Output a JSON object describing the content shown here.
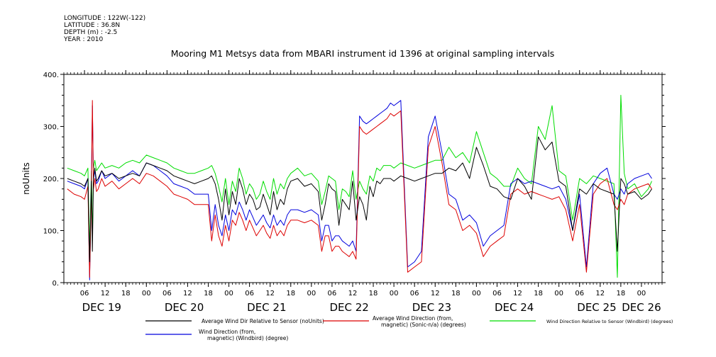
{
  "metadata": [
    "LONGITUDE : 122W(-122)",
    "LATITUDE : 36.8N",
    "DEPTH (m) : -2.5",
    "YEAR : 2010"
  ],
  "chart_data": {
    "type": "line",
    "title": "Mooring M1 Metsys data from MBARI instrument id 1396 at original sampling intervals",
    "ylabel": "noUnits",
    "xlabel": "",
    "ylim": [
      0,
      400
    ],
    "xlim": [
      0,
      174
    ],
    "x_units": "hours since Dec 19 00:00",
    "yticks": [
      {
        "v": 0,
        "label": "0."
      },
      {
        "v": 100,
        "label": "100."
      },
      {
        "v": 200,
        "label": "200."
      },
      {
        "v": 300,
        "label": "300."
      },
      {
        "v": 400,
        "label": "400."
      }
    ],
    "xticks_hour": [
      {
        "h": 6,
        "label": "06"
      },
      {
        "h": 12,
        "label": "12"
      },
      {
        "h": 18,
        "label": "18"
      },
      {
        "h": 24,
        "label": "00"
      },
      {
        "h": 30,
        "label": "06"
      },
      {
        "h": 36,
        "label": "12"
      },
      {
        "h": 42,
        "label": "18"
      },
      {
        "h": 48,
        "label": "00"
      },
      {
        "h": 54,
        "label": "06"
      },
      {
        "h": 60,
        "label": "12"
      },
      {
        "h": 66,
        "label": "18"
      },
      {
        "h": 72,
        "label": "00"
      },
      {
        "h": 78,
        "label": "06"
      },
      {
        "h": 84,
        "label": "12"
      },
      {
        "h": 90,
        "label": "18"
      },
      {
        "h": 96,
        "label": "00"
      },
      {
        "h": 102,
        "label": "06"
      },
      {
        "h": 108,
        "label": "12"
      },
      {
        "h": 114,
        "label": "18"
      },
      {
        "h": 120,
        "label": "00"
      },
      {
        "h": 126,
        "label": "06"
      },
      {
        "h": 132,
        "label": "12"
      },
      {
        "h": 138,
        "label": "18"
      },
      {
        "h": 144,
        "label": "00"
      },
      {
        "h": 150,
        "label": "06"
      },
      {
        "h": 156,
        "label": "12"
      },
      {
        "h": 162,
        "label": "18"
      },
      {
        "h": 168,
        "label": "00"
      }
    ],
    "xticks_day": [
      {
        "h": 11,
        "label": "DEC 19"
      },
      {
        "h": 35,
        "label": "DEC 20"
      },
      {
        "h": 59,
        "label": "DEC 21"
      },
      {
        "h": 83,
        "label": "DEC 22"
      },
      {
        "h": 107,
        "label": "DEC 23"
      },
      {
        "h": 131,
        "label": "DEC 24"
      },
      {
        "h": 155,
        "label": "DEC 25"
      },
      {
        "h": 168,
        "label": "DEC 26"
      }
    ],
    "colors": {
      "black": "#000000",
      "red": "#dd0000",
      "green": "#00dd00",
      "blue": "#0000dd"
    },
    "series": [
      {
        "name": "Average Wind Dir Relative to Sensor (noUnits)",
        "color": "#000000",
        "x": [
          1,
          3,
          5,
          6,
          7,
          7.5,
          8,
          8.3,
          8.6,
          9,
          9.5,
          10,
          11,
          12,
          14,
          16,
          18,
          20,
          22,
          24,
          26,
          28,
          30,
          32,
          34,
          36,
          38,
          40,
          42,
          43,
          44,
          45,
          46,
          47,
          48,
          49,
          50,
          51,
          52,
          53,
          54,
          55,
          56,
          57,
          58,
          59,
          60,
          61,
          62,
          63,
          64,
          65,
          66,
          68,
          70,
          72,
          74,
          75,
          76,
          77,
          78,
          79,
          80,
          81,
          82,
          83,
          84,
          85,
          86,
          87,
          88,
          89,
          90,
          91,
          92,
          93,
          94,
          95,
          96,
          98,
          100,
          102,
          104,
          106,
          108,
          110,
          112,
          114,
          116,
          118,
          120,
          122,
          124,
          126,
          128,
          130,
          132,
          134,
          136,
          138,
          140,
          142,
          144,
          146,
          148,
          150,
          152,
          154,
          156,
          158,
          160,
          161,
          162,
          163,
          164,
          166,
          168,
          170,
          171
        ],
        "y": [
          200,
          195,
          190,
          185,
          200,
          40,
          195,
          60,
          200,
          220,
          195,
          200,
          215,
          205,
          210,
          200,
          205,
          210,
          205,
          230,
          225,
          220,
          215,
          205,
          200,
          195,
          190,
          195,
          200,
          205,
          190,
          160,
          120,
          180,
          130,
          175,
          150,
          200,
          180,
          150,
          170,
          160,
          140,
          145,
          170,
          150,
          130,
          175,
          140,
          160,
          150,
          180,
          195,
          200,
          185,
          190,
          175,
          120,
          150,
          190,
          180,
          175,
          110,
          160,
          150,
          140,
          195,
          120,
          165,
          150,
          120,
          185,
          165,
          195,
          190,
          200,
          200,
          200,
          195,
          205,
          200,
          195,
          200,
          205,
          210,
          210,
          220,
          215,
          230,
          200,
          260,
          225,
          185,
          180,
          165,
          160,
          200,
          185,
          160,
          280,
          255,
          270,
          195,
          185,
          100,
          180,
          170,
          190,
          180,
          175,
          170,
          60,
          200,
          190,
          170,
          175,
          160,
          170,
          180
        ]
      },
      {
        "name": "Average Wind Direction (from, magnetic) (Sonic-n/a) (degrees)",
        "color": "#dd0000",
        "x": [
          1,
          3,
          5,
          6,
          7,
          7.5,
          8,
          8.3,
          8.6,
          9,
          9.5,
          10,
          11,
          12,
          14,
          16,
          18,
          20,
          22,
          24,
          26,
          28,
          30,
          32,
          34,
          36,
          38,
          40,
          42,
          43,
          44,
          45,
          46,
          47,
          48,
          49,
          50,
          51,
          52,
          53,
          54,
          55,
          56,
          57,
          58,
          59,
          60,
          61,
          62,
          63,
          64,
          65,
          66,
          68,
          70,
          72,
          74,
          75,
          76,
          77,
          78,
          79,
          80,
          81,
          82,
          83,
          84,
          85,
          86,
          87,
          88,
          89,
          90,
          91,
          92,
          93,
          94,
          95,
          96,
          98,
          100,
          102,
          104,
          106,
          108,
          110,
          112,
          114,
          116,
          118,
          120,
          122,
          124,
          126,
          128,
          130,
          132,
          134,
          136,
          138,
          140,
          142,
          144,
          146,
          148,
          150,
          152,
          154,
          156,
          158,
          160,
          161,
          162,
          163,
          164,
          166,
          168,
          170,
          171
        ],
        "y": [
          180,
          170,
          165,
          160,
          185,
          10,
          170,
          350,
          180,
          200,
          175,
          180,
          200,
          185,
          195,
          180,
          190,
          200,
          190,
          210,
          205,
          195,
          185,
          170,
          165,
          160,
          150,
          150,
          150,
          80,
          130,
          90,
          70,
          110,
          80,
          120,
          110,
          135,
          120,
          100,
          120,
          105,
          90,
          100,
          110,
          95,
          85,
          110,
          90,
          100,
          90,
          110,
          120,
          120,
          115,
          120,
          110,
          60,
          90,
          90,
          60,
          70,
          70,
          60,
          55,
          50,
          60,
          45,
          300,
          290,
          285,
          290,
          295,
          300,
          305,
          310,
          315,
          325,
          320,
          330,
          20,
          30,
          40,
          260,
          300,
          230,
          150,
          140,
          100,
          110,
          95,
          50,
          70,
          80,
          90,
          170,
          180,
          170,
          175,
          170,
          165,
          160,
          165,
          140,
          80,
          150,
          20,
          170,
          190,
          200,
          150,
          140,
          160,
          150,
          170,
          180,
          185,
          190,
          180
        ]
      },
      {
        "name": "Wind Direction Relative to Sensor (Windbird) (degrees)",
        "color": "#00dd00",
        "x": [
          1,
          3,
          5,
          6,
          7,
          7.5,
          8,
          8.3,
          8.6,
          9,
          9.5,
          10,
          11,
          12,
          14,
          16,
          18,
          20,
          22,
          24,
          26,
          28,
          30,
          32,
          34,
          36,
          38,
          40,
          42,
          43,
          44,
          45,
          46,
          47,
          48,
          49,
          50,
          51,
          52,
          53,
          54,
          55,
          56,
          57,
          58,
          59,
          60,
          61,
          62,
          63,
          64,
          65,
          66,
          68,
          70,
          72,
          74,
          75,
          76,
          77,
          78,
          79,
          80,
          81,
          82,
          83,
          84,
          85,
          86,
          87,
          88,
          89,
          90,
          91,
          92,
          93,
          94,
          95,
          96,
          98,
          100,
          102,
          104,
          106,
          108,
          110,
          112,
          114,
          116,
          118,
          120,
          122,
          124,
          126,
          128,
          130,
          132,
          134,
          136,
          138,
          140,
          142,
          144,
          146,
          148,
          150,
          152,
          154,
          156,
          158,
          160,
          161,
          162,
          163,
          164,
          166,
          168,
          170,
          171
        ],
        "y": [
          220,
          215,
          210,
          205,
          220,
          60,
          215,
          80,
          220,
          235,
          215,
          220,
          230,
          220,
          225,
          220,
          230,
          235,
          230,
          245,
          240,
          235,
          230,
          220,
          215,
          210,
          210,
          215,
          220,
          225,
          210,
          185,
          155,
          200,
          150,
          195,
          175,
          220,
          200,
          170,
          190,
          180,
          160,
          170,
          195,
          175,
          160,
          200,
          170,
          190,
          180,
          200,
          210,
          220,
          205,
          210,
          195,
          150,
          175,
          205,
          200,
          195,
          140,
          180,
          175,
          165,
          215,
          160,
          195,
          180,
          170,
          205,
          195,
          220,
          215,
          225,
          225,
          225,
          220,
          230,
          225,
          220,
          225,
          230,
          235,
          235,
          260,
          240,
          250,
          230,
          290,
          250,
          210,
          200,
          185,
          185,
          220,
          200,
          190,
          300,
          275,
          340,
          215,
          205,
          120,
          200,
          190,
          205,
          200,
          195,
          190,
          10,
          360,
          210,
          180,
          190,
          165,
          180,
          195
        ]
      },
      {
        "name": "Wind Direction (from, magnetic) (Windbird) (degree)",
        "color": "#0000dd",
        "x": [
          1,
          3,
          5,
          6,
          7,
          7.5,
          8,
          8.3,
          8.6,
          9,
          9.5,
          10,
          11,
          12,
          14,
          16,
          18,
          20,
          22,
          24,
          26,
          28,
          30,
          32,
          34,
          36,
          38,
          40,
          42,
          43,
          44,
          45,
          46,
          47,
          48,
          49,
          50,
          51,
          52,
          53,
          54,
          55,
          56,
          57,
          58,
          59,
          60,
          61,
          62,
          63,
          64,
          65,
          66,
          68,
          70,
          72,
          74,
          75,
          76,
          77,
          78,
          79,
          80,
          81,
          82,
          83,
          84,
          85,
          86,
          87,
          88,
          89,
          90,
          91,
          92,
          93,
          94,
          95,
          96,
          98,
          100,
          102,
          104,
          106,
          108,
          110,
          112,
          114,
          116,
          118,
          120,
          122,
          124,
          126,
          128,
          130,
          132,
          134,
          136,
          138,
          140,
          142,
          144,
          146,
          148,
          150,
          152,
          154,
          156,
          158,
          160,
          161,
          162,
          163,
          164,
          166,
          168,
          170,
          171
        ],
        "y": [
          195,
          190,
          185,
          180,
          200,
          5,
          195,
          340,
          200,
          215,
          190,
          195,
          215,
          200,
          210,
          195,
          205,
          215,
          205,
          230,
          225,
          215,
          205,
          190,
          185,
          180,
          170,
          170,
          170,
          100,
          150,
          110,
          90,
          130,
          100,
          140,
          130,
          155,
          140,
          120,
          140,
          125,
          110,
          120,
          130,
          115,
          105,
          130,
          110,
          120,
          110,
          130,
          140,
          140,
          135,
          140,
          130,
          80,
          110,
          110,
          80,
          90,
          90,
          80,
          75,
          70,
          80,
          60,
          320,
          310,
          305,
          310,
          315,
          320,
          325,
          330,
          335,
          345,
          340,
          350,
          30,
          40,
          60,
          280,
          320,
          250,
          170,
          160,
          120,
          130,
          115,
          70,
          90,
          100,
          110,
          190,
          200,
          190,
          195,
          190,
          185,
          180,
          185,
          160,
          100,
          170,
          30,
          190,
          210,
          220,
          170,
          160,
          180,
          170,
          190,
          200,
          205,
          210,
          200
        ]
      }
    ],
    "legend": [
      {
        "label": "Average Wind Dir Relative to Sensor (noUnits)",
        "color": "#000000"
      },
      {
        "label": "Average Wind Direction (from,\nmagnetic) (Sonic-n/a) (degrees)",
        "color": "#dd0000"
      },
      {
        "label": "Wind Direction Relative to Sensor (Windbird) (degrees)",
        "color": "#00dd00"
      },
      {
        "label": "Wind Direction (from,\nmagnetic) (Windbird) (degree)",
        "color": "#0000dd"
      }
    ]
  }
}
